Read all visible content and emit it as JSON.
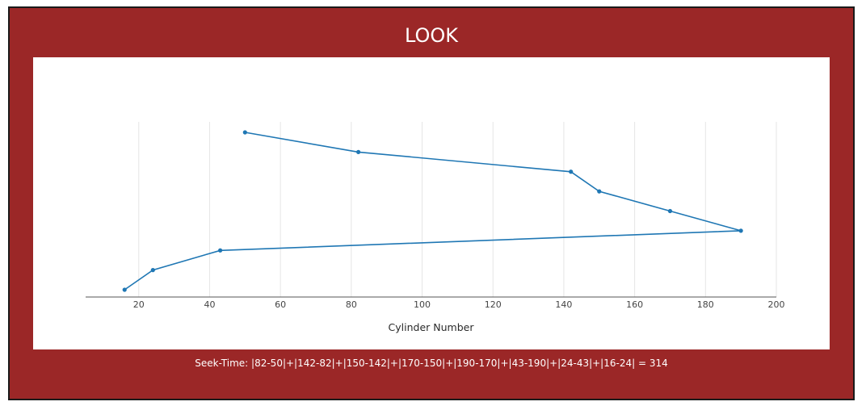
{
  "page": {
    "title": "LOOK",
    "seek_time": "Seek-Time: |82-50|+|142-82|+|150-142|+|170-150|+|190-170|+|43-190|+|24-43|+|16-24| = 314"
  },
  "colors": {
    "frame_background": "#9b2727",
    "series_line": "#1f77b4",
    "grid": "#e6e6e6"
  },
  "chart_data": {
    "type": "line",
    "title": "LOOK",
    "xlabel": "Cylinder Number",
    "ylabel": "",
    "xlim": [
      5,
      200
    ],
    "xticks": [
      20,
      40,
      60,
      80,
      100,
      120,
      140,
      160,
      180,
      200
    ],
    "x": [
      50,
      82,
      142,
      150,
      170,
      190,
      43,
      24,
      16
    ],
    "y": [
      1,
      2,
      3,
      4,
      5,
      6,
      7,
      8,
      9
    ],
    "y_inverted": true,
    "y_axis_visible": false,
    "grid": "vertical",
    "legend": "none"
  }
}
